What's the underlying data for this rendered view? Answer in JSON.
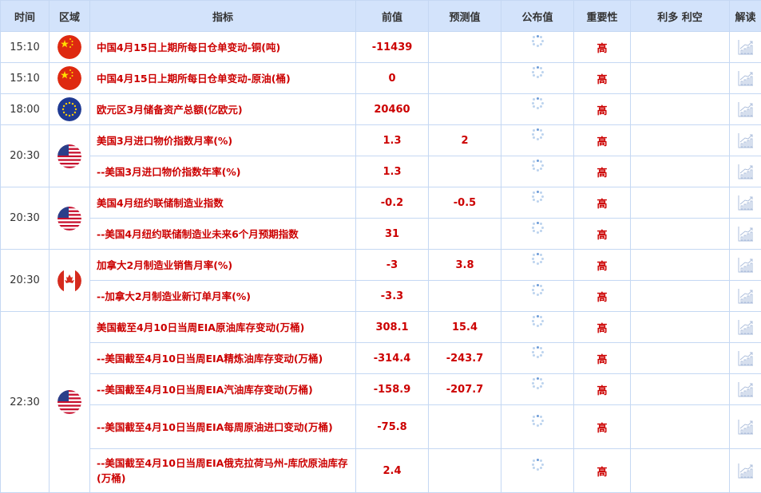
{
  "headers": [
    "时间",
    "区域",
    "指标",
    "前值",
    "预测值",
    "公布值",
    "重要性",
    "利多 利空",
    "解读"
  ],
  "groups": [
    {
      "time": "15:10",
      "flag": "china",
      "rows": [
        {
          "indicator": "中国4月15日上期所每日仓单变动-铜(吨)",
          "previous": "-11439",
          "forecast": "",
          "actual": "",
          "importance": "高"
        }
      ]
    },
    {
      "time": "15:10",
      "flag": "china",
      "rows": [
        {
          "indicator": "中国4月15日上期所每日仓单变动-原油(桶)",
          "previous": "0",
          "forecast": "",
          "actual": "",
          "importance": "高"
        }
      ]
    },
    {
      "time": "18:00",
      "flag": "eu",
      "rows": [
        {
          "indicator": "欧元区3月储备资产总额(亿欧元)",
          "previous": "20460",
          "forecast": "",
          "actual": "",
          "importance": "高"
        }
      ]
    },
    {
      "time": "20:30",
      "flag": "usa",
      "rows": [
        {
          "indicator": "美国3月进口物价指数月率(%)",
          "previous": "1.3",
          "forecast": "2",
          "actual": "",
          "importance": "高"
        },
        {
          "indicator": "--美国3月进口物价指数年率(%)",
          "previous": "1.3",
          "forecast": "",
          "actual": "",
          "importance": "高"
        }
      ]
    },
    {
      "time": "20:30",
      "flag": "usa",
      "rows": [
        {
          "indicator": "美国4月纽约联储制造业指数",
          "previous": "-0.2",
          "forecast": "-0.5",
          "actual": "",
          "importance": "高"
        },
        {
          "indicator": "--美国4月纽约联储制造业未来6个月预期指数",
          "previous": "31",
          "forecast": "",
          "actual": "",
          "importance": "高"
        }
      ]
    },
    {
      "time": "20:30",
      "flag": "canada",
      "rows": [
        {
          "indicator": "加拿大2月制造业销售月率(%)",
          "previous": "-3",
          "forecast": "3.8",
          "actual": "",
          "importance": "高"
        },
        {
          "indicator": "--加拿大2月制造业新订单月率(%)",
          "previous": "-3.3",
          "forecast": "",
          "actual": "",
          "importance": "高"
        }
      ]
    },
    {
      "time": "22:30",
      "flag": "usa",
      "rows": [
        {
          "indicator": "美国截至4月10日当周EIA原油库存变动(万桶)",
          "previous": "308.1",
          "forecast": "15.4",
          "actual": "",
          "importance": "高"
        },
        {
          "indicator": "--美国截至4月10日当周EIA精炼油库存变动(万桶)",
          "previous": "-314.4",
          "forecast": "-243.7",
          "actual": "",
          "importance": "高"
        },
        {
          "indicator": "--美国截至4月10日当周EIA汽油库存变动(万桶)",
          "previous": "-158.9",
          "forecast": "-207.7",
          "actual": "",
          "importance": "高"
        },
        {
          "indicator": "--美国截至4月10日当周EIA每周原油进口变动(万桶)",
          "previous": "-75.8",
          "forecast": "",
          "actual": "",
          "importance": "高",
          "tall": true
        },
        {
          "indicator": "--美国截至4月10日当周EIA俄克拉荷马州-库欣原油库存(万桶)",
          "previous": "2.4",
          "forecast": "",
          "actual": "",
          "importance": "高",
          "tall": true
        }
      ]
    }
  ],
  "icons": {
    "actual": "loading-spinner-icon",
    "read": "chart-analysis-icon"
  },
  "colors": {
    "header_bg": "#d3e3fb",
    "border": "#c5d8f3",
    "accent_red": "#cc0000"
  }
}
